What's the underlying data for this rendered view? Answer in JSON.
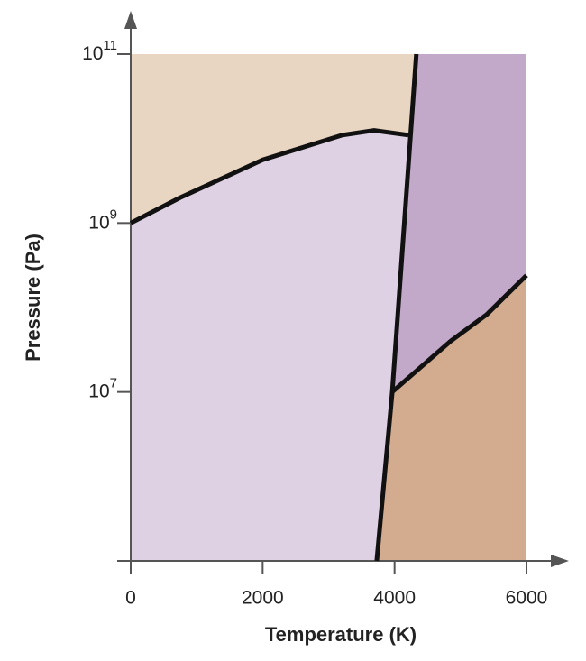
{
  "chart_data": {
    "type": "line",
    "xlabel": "Temperature (K)",
    "ylabel": "Pressure (Pa)",
    "xlim": [
      0,
      6000
    ],
    "xticks": [
      0,
      2000,
      4000,
      6000
    ],
    "ylim": [
      100000,
      100000000000
    ],
    "log_y": true,
    "yticks": [
      {
        "value": 100000000000,
        "label": "10",
        "exponent": "11"
      },
      {
        "value": 1000000000,
        "label": "10",
        "exponent": "9"
      },
      {
        "value": 10000000,
        "label": "10",
        "exponent": "7"
      }
    ],
    "region_colors": [
      "#e8d5c2",
      "#ded1e3",
      "#c3a9c9",
      "#d3ab8f"
    ],
    "series": [
      {
        "color": "#111111",
        "x": [
          0,
          750,
          2000,
          3210,
          3690,
          4210
        ],
        "values": [
          1000000000,
          2000000000,
          5600000000,
          11000000000,
          12500000000,
          11000000000
        ]
      },
      {
        "color": "#111111",
        "x": [
          3730,
          3965,
          4330
        ],
        "values": [
          100000,
          10000000,
          100000000000
        ]
      },
      {
        "color": "#111111",
        "x": [
          3965,
          4850,
          5400,
          6000
        ],
        "values": [
          10000000,
          40000000,
          83000000,
          240000000
        ]
      }
    ]
  }
}
